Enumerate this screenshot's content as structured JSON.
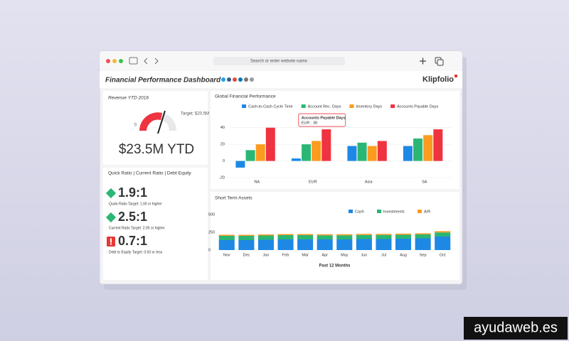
{
  "browser": {
    "address": "Search or enter website name"
  },
  "dashboard": {
    "title": "Financial Performance Dashboard",
    "brand": "Klipfolio"
  },
  "revenue": {
    "title": "Revenue YTD 2016",
    "value": "$23.5M YTD",
    "target": "Target: $20.5M",
    "gauge_min": "0"
  },
  "ratios": {
    "title": "Quick Ratio | Current Ratio | Debt-Equity",
    "items": [
      {
        "value": "1.9:1",
        "note": "Quick Ratio Target: 1.00 or higher",
        "icon": "diamond",
        "color": "#2bb673"
      },
      {
        "value": "2.5:1",
        "note": "Current Ratio Target: 2.00 or higher",
        "icon": "diamond",
        "color": "#2bb673"
      },
      {
        "value": "0.7:1",
        "note": "Debt to Equity Target: 0.50 or less",
        "icon": "alert",
        "color": "#e53935"
      }
    ]
  },
  "chart_data": [
    {
      "type": "bar",
      "title": "Global Financial Performance",
      "categories": [
        "NA",
        "EUR",
        "Asia",
        "SA"
      ],
      "series": [
        {
          "name": "Cash-to-Cash Cycle Time",
          "color": "#1e88e5",
          "values": [
            -8,
            3,
            18,
            18
          ]
        },
        {
          "name": "Account Rec. Days",
          "color": "#2bb673",
          "values": [
            13,
            20,
            22,
            27
          ]
        },
        {
          "name": "Inventory Days",
          "color": "#fb9b1f",
          "values": [
            20,
            24,
            18,
            31
          ]
        },
        {
          "name": "Accounts Payable Days",
          "color": "#ef3340",
          "values": [
            40,
            38,
            24,
            38
          ]
        }
      ],
      "ylim": [
        -20,
        50
      ],
      "yticks": [
        -20,
        0,
        20,
        40
      ],
      "grid": true,
      "legend": "top",
      "tooltip": {
        "title": "Accounts Payable Days",
        "text": "EUR : 38"
      }
    },
    {
      "type": "stacked_bar",
      "title": "Short Term Assets",
      "xlabel": "Past 12 Months",
      "categories": [
        "Nov",
        "Dec",
        "Jan",
        "Feb",
        "Mar",
        "Apr",
        "May",
        "Jun",
        "Jul",
        "Aug",
        "Sep",
        "Oct"
      ],
      "series": [
        {
          "name": "Cash",
          "color": "#1e88e5",
          "values": [
            140,
            140,
            145,
            150,
            150,
            150,
            150,
            155,
            155,
            160,
            165,
            190
          ]
        },
        {
          "name": "Investments",
          "color": "#2bb673",
          "values": [
            60,
            60,
            60,
            60,
            60,
            58,
            58,
            58,
            58,
            56,
            56,
            58
          ]
        },
        {
          "name": "A/R",
          "color": "#fb9b1f",
          "values": [
            15,
            15,
            15,
            15,
            15,
            15,
            15,
            15,
            15,
            15,
            15,
            18
          ]
        }
      ],
      "ylim": [
        0,
        500
      ],
      "yticks": [
        0,
        250,
        500
      ],
      "legend": "top-right"
    }
  ],
  "watermark": "ayudaweb.es"
}
